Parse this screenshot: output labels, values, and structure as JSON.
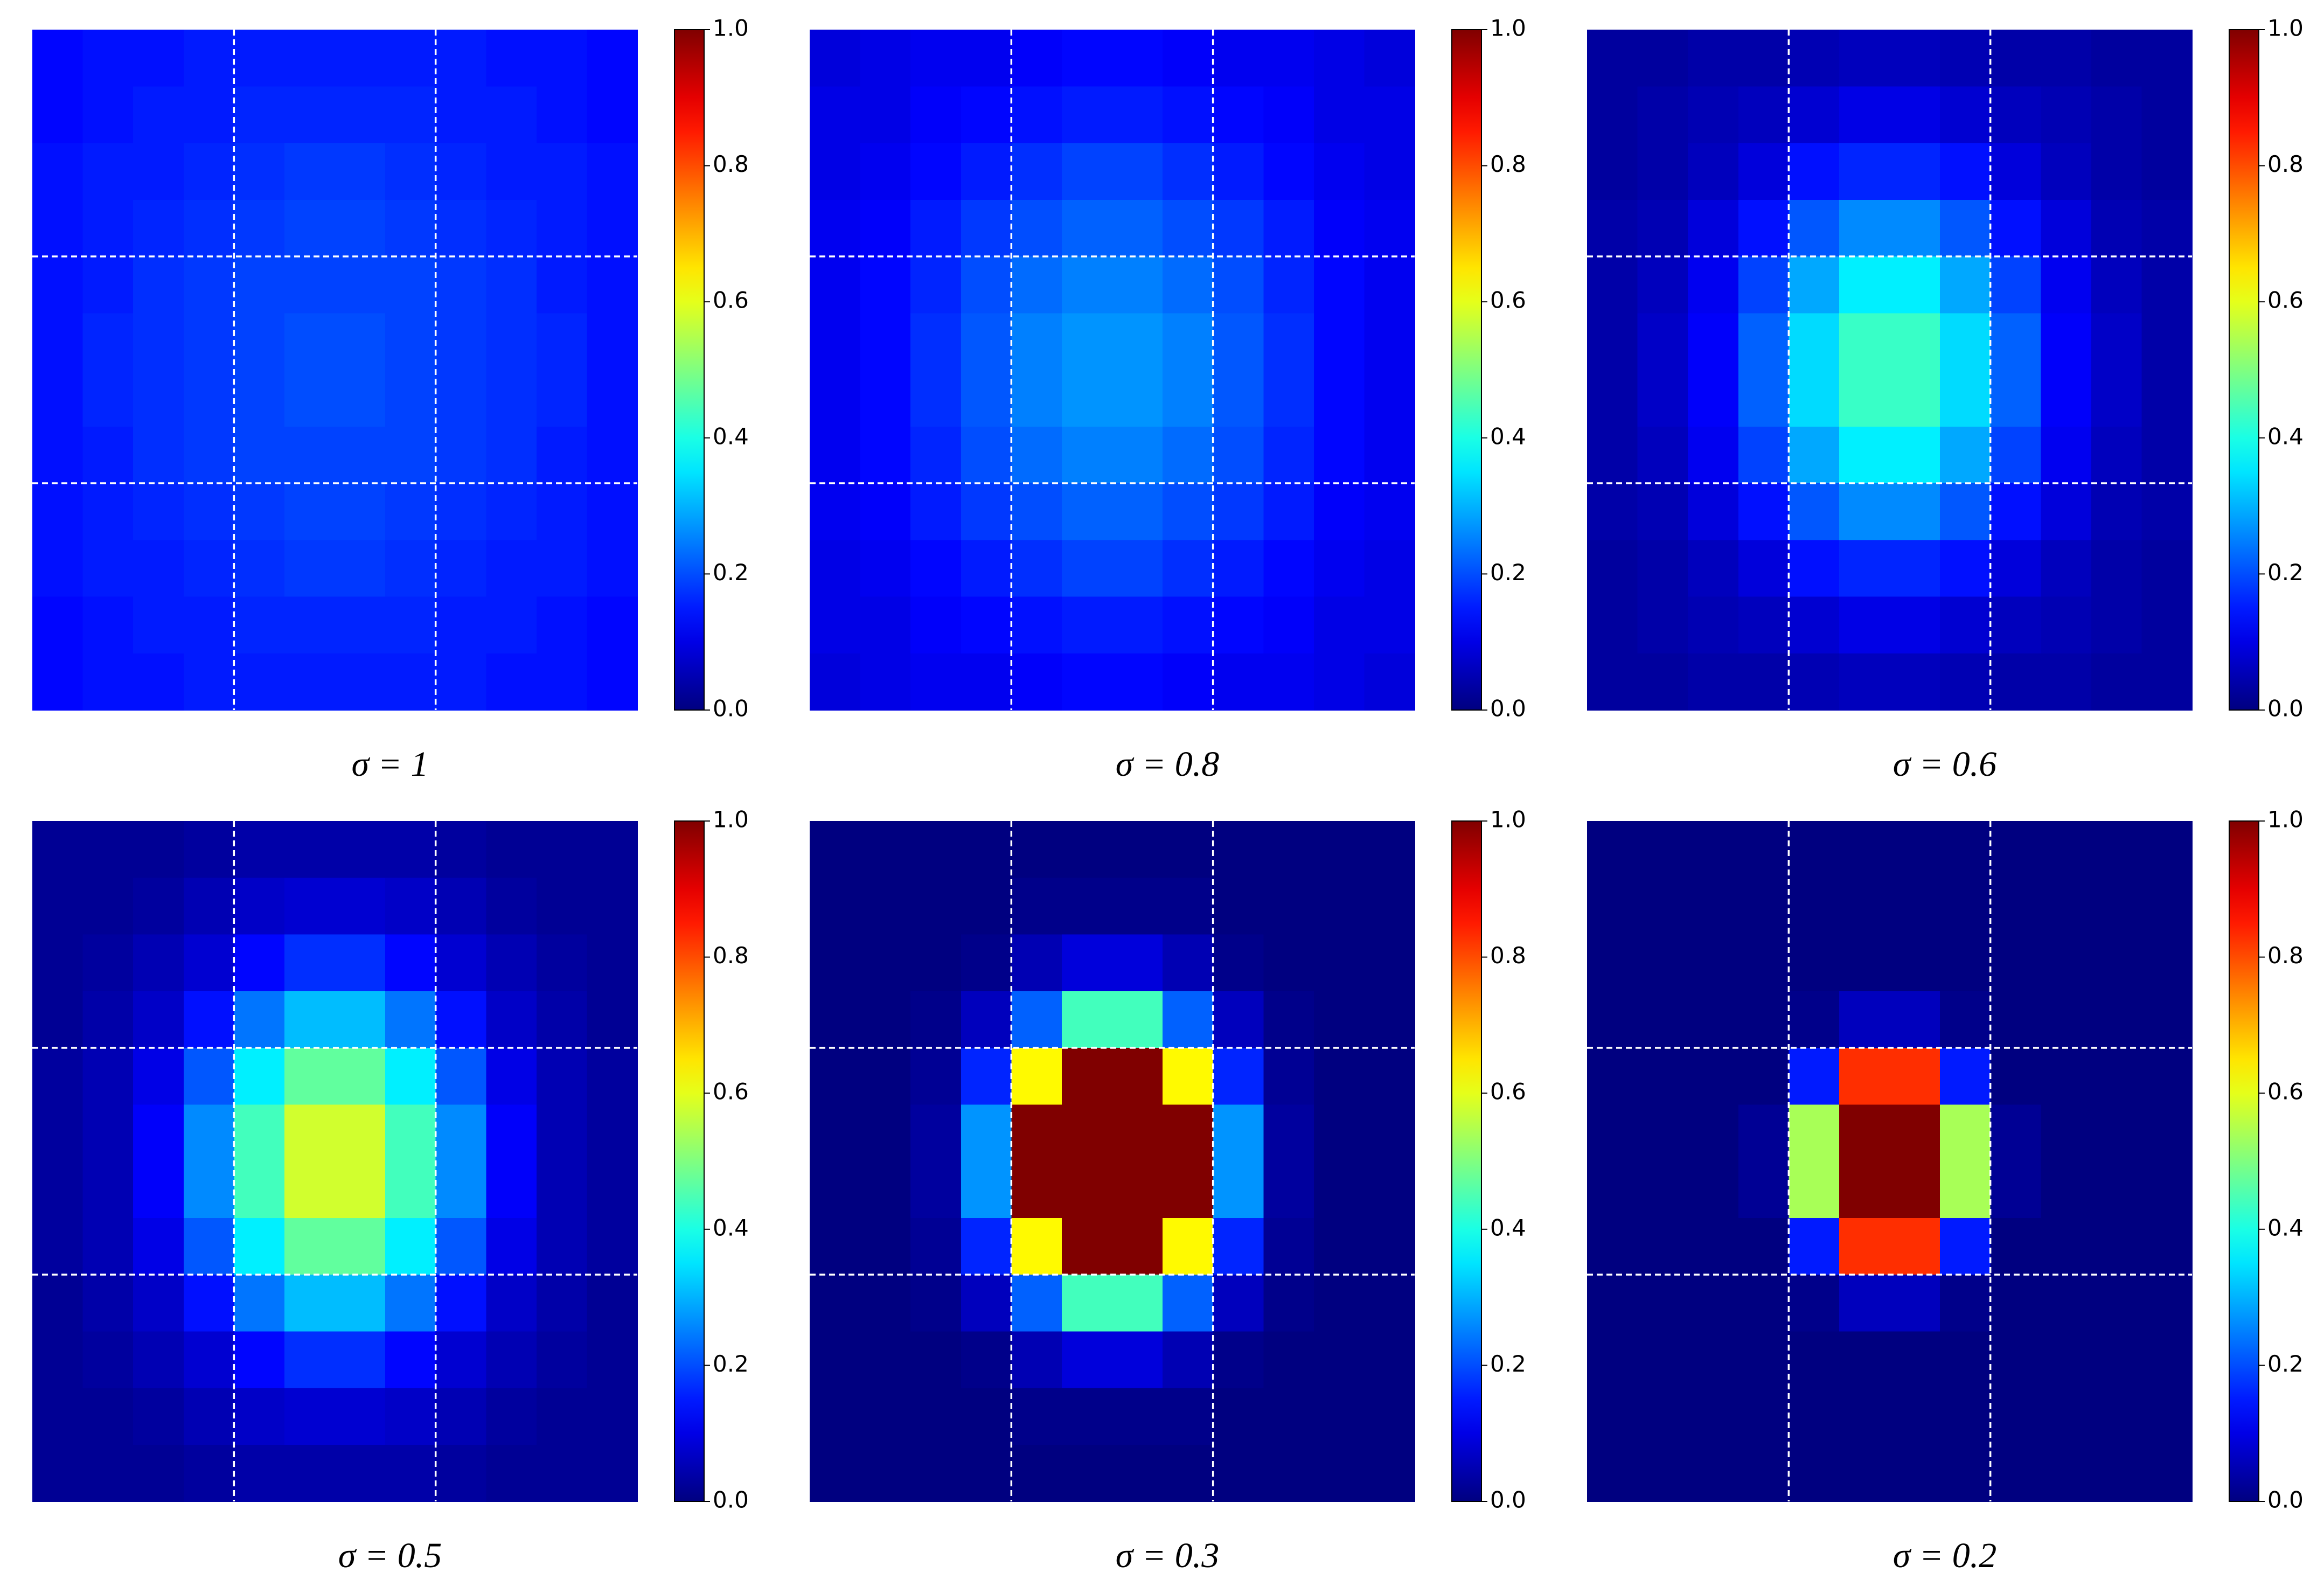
{
  "chart_data": [
    {
      "type": "heatmap",
      "caption": "σ = 1",
      "colormap": "jet",
      "grid": true,
      "clim": [
        0,
        1
      ],
      "cticks": [
        {
          "value": 0,
          "label": "0.0"
        },
        0.2,
        0.4,
        0.6,
        0.8,
        {
          "value": 1,
          "label": "1.0"
        }
      ],
      "z": [
        [
          0.13,
          0.14,
          0.14,
          0.15,
          0.15,
          0.15,
          0.15,
          0.15,
          0.15,
          0.14,
          0.14,
          0.13
        ],
        [
          0.13,
          0.14,
          0.15,
          0.15,
          0.16,
          0.16,
          0.16,
          0.16,
          0.15,
          0.15,
          0.14,
          0.13
        ],
        [
          0.14,
          0.15,
          0.15,
          0.16,
          0.17,
          0.18,
          0.18,
          0.17,
          0.16,
          0.15,
          0.15,
          0.14
        ],
        [
          0.14,
          0.15,
          0.16,
          0.17,
          0.18,
          0.19,
          0.19,
          0.18,
          0.17,
          0.16,
          0.15,
          0.14
        ],
        [
          0.14,
          0.15,
          0.17,
          0.18,
          0.19,
          0.19,
          0.19,
          0.19,
          0.18,
          0.17,
          0.15,
          0.14
        ],
        [
          0.14,
          0.16,
          0.17,
          0.18,
          0.19,
          0.2,
          0.2,
          0.19,
          0.18,
          0.17,
          0.16,
          0.14
        ],
        [
          0.14,
          0.16,
          0.17,
          0.18,
          0.19,
          0.2,
          0.2,
          0.19,
          0.18,
          0.17,
          0.16,
          0.14
        ],
        [
          0.14,
          0.15,
          0.17,
          0.18,
          0.19,
          0.19,
          0.19,
          0.19,
          0.18,
          0.17,
          0.15,
          0.14
        ],
        [
          0.14,
          0.15,
          0.16,
          0.17,
          0.18,
          0.19,
          0.19,
          0.18,
          0.17,
          0.16,
          0.15,
          0.14
        ],
        [
          0.14,
          0.15,
          0.15,
          0.16,
          0.17,
          0.18,
          0.18,
          0.17,
          0.16,
          0.15,
          0.15,
          0.14
        ],
        [
          0.13,
          0.14,
          0.15,
          0.15,
          0.16,
          0.16,
          0.16,
          0.16,
          0.15,
          0.15,
          0.14,
          0.13
        ],
        [
          0.13,
          0.14,
          0.14,
          0.15,
          0.15,
          0.15,
          0.15,
          0.15,
          0.15,
          0.14,
          0.14,
          0.13
        ]
      ]
    },
    {
      "type": "heatmap",
      "caption": "σ = 0.8",
      "colormap": "jet",
      "grid": true,
      "clim": [
        0,
        1
      ],
      "cticks": [
        {
          "value": 0,
          "label": "0.0"
        },
        0.2,
        0.4,
        0.6,
        0.8,
        {
          "value": 1,
          "label": "1.0"
        }
      ],
      "z": [
        [
          0.09,
          0.1,
          0.11,
          0.11,
          0.12,
          0.13,
          0.13,
          0.12,
          0.11,
          0.11,
          0.1,
          0.09
        ],
        [
          0.1,
          0.1,
          0.12,
          0.13,
          0.14,
          0.15,
          0.15,
          0.14,
          0.13,
          0.12,
          0.1,
          0.1
        ],
        [
          0.1,
          0.11,
          0.13,
          0.15,
          0.17,
          0.19,
          0.19,
          0.17,
          0.15,
          0.13,
          0.11,
          0.1
        ],
        [
          0.11,
          0.12,
          0.15,
          0.18,
          0.2,
          0.22,
          0.22,
          0.2,
          0.18,
          0.15,
          0.12,
          0.11
        ],
        [
          0.11,
          0.13,
          0.16,
          0.2,
          0.23,
          0.25,
          0.25,
          0.23,
          0.2,
          0.16,
          0.13,
          0.11
        ],
        [
          0.11,
          0.13,
          0.17,
          0.21,
          0.25,
          0.27,
          0.27,
          0.25,
          0.21,
          0.17,
          0.13,
          0.11
        ],
        [
          0.11,
          0.13,
          0.17,
          0.21,
          0.25,
          0.27,
          0.27,
          0.25,
          0.21,
          0.17,
          0.13,
          0.11
        ],
        [
          0.11,
          0.13,
          0.16,
          0.2,
          0.23,
          0.25,
          0.25,
          0.23,
          0.2,
          0.16,
          0.13,
          0.11
        ],
        [
          0.11,
          0.12,
          0.15,
          0.18,
          0.2,
          0.22,
          0.22,
          0.2,
          0.18,
          0.15,
          0.12,
          0.11
        ],
        [
          0.1,
          0.11,
          0.13,
          0.15,
          0.17,
          0.19,
          0.19,
          0.17,
          0.15,
          0.13,
          0.11,
          0.1
        ],
        [
          0.1,
          0.1,
          0.12,
          0.13,
          0.14,
          0.15,
          0.15,
          0.14,
          0.13,
          0.12,
          0.1,
          0.1
        ],
        [
          0.09,
          0.1,
          0.11,
          0.11,
          0.12,
          0.13,
          0.13,
          0.12,
          0.11,
          0.11,
          0.1,
          0.09
        ]
      ]
    },
    {
      "type": "heatmap",
      "caption": "σ = 0.6",
      "colormap": "jet",
      "grid": true,
      "clim": [
        0,
        1
      ],
      "cticks": [
        {
          "value": 0,
          "label": "0.0"
        },
        0.2,
        0.4,
        0.6,
        0.8,
        {
          "value": 1,
          "label": "1.0"
        }
      ],
      "z": [
        [
          0.03,
          0.03,
          0.04,
          0.04,
          0.05,
          0.06,
          0.06,
          0.05,
          0.04,
          0.04,
          0.03,
          0.03
        ],
        [
          0.03,
          0.04,
          0.05,
          0.06,
          0.08,
          0.1,
          0.1,
          0.08,
          0.06,
          0.05,
          0.04,
          0.03
        ],
        [
          0.03,
          0.04,
          0.06,
          0.09,
          0.14,
          0.16,
          0.16,
          0.14,
          0.09,
          0.06,
          0.04,
          0.03
        ],
        [
          0.04,
          0.05,
          0.09,
          0.14,
          0.21,
          0.26,
          0.26,
          0.21,
          0.14,
          0.09,
          0.05,
          0.04
        ],
        [
          0.04,
          0.06,
          0.11,
          0.19,
          0.29,
          0.36,
          0.36,
          0.29,
          0.19,
          0.11,
          0.06,
          0.04
        ],
        [
          0.04,
          0.07,
          0.12,
          0.22,
          0.34,
          0.43,
          0.43,
          0.34,
          0.22,
          0.12,
          0.07,
          0.04
        ],
        [
          0.04,
          0.07,
          0.12,
          0.22,
          0.34,
          0.43,
          0.43,
          0.34,
          0.22,
          0.12,
          0.07,
          0.04
        ],
        [
          0.04,
          0.06,
          0.11,
          0.19,
          0.29,
          0.36,
          0.36,
          0.29,
          0.19,
          0.11,
          0.06,
          0.04
        ],
        [
          0.04,
          0.05,
          0.09,
          0.14,
          0.21,
          0.26,
          0.26,
          0.21,
          0.14,
          0.09,
          0.05,
          0.04
        ],
        [
          0.03,
          0.04,
          0.06,
          0.09,
          0.14,
          0.16,
          0.16,
          0.14,
          0.09,
          0.06,
          0.04,
          0.03
        ],
        [
          0.03,
          0.04,
          0.05,
          0.06,
          0.08,
          0.1,
          0.1,
          0.08,
          0.06,
          0.05,
          0.04,
          0.03
        ],
        [
          0.03,
          0.03,
          0.04,
          0.04,
          0.05,
          0.06,
          0.06,
          0.05,
          0.04,
          0.04,
          0.03,
          0.03
        ]
      ]
    },
    {
      "type": "heatmap",
      "caption": "σ = 0.5",
      "colormap": "jet",
      "grid": true,
      "clim": [
        0,
        1
      ],
      "cticks": [
        {
          "value": 0,
          "label": "0.0"
        },
        0.2,
        0.4,
        0.6,
        0.8,
        {
          "value": 1,
          "label": "1.0"
        }
      ],
      "z": [
        [
          0.02,
          0.02,
          0.02,
          0.03,
          0.04,
          0.04,
          0.04,
          0.04,
          0.03,
          0.02,
          0.02,
          0.02
        ],
        [
          0.02,
          0.02,
          0.03,
          0.05,
          0.07,
          0.08,
          0.08,
          0.07,
          0.05,
          0.03,
          0.02,
          0.02
        ],
        [
          0.02,
          0.03,
          0.05,
          0.08,
          0.13,
          0.17,
          0.17,
          0.13,
          0.08,
          0.05,
          0.03,
          0.02
        ],
        [
          0.02,
          0.04,
          0.07,
          0.14,
          0.24,
          0.31,
          0.31,
          0.24,
          0.14,
          0.07,
          0.04,
          0.02
        ],
        [
          0.03,
          0.05,
          0.1,
          0.21,
          0.36,
          0.47,
          0.47,
          0.36,
          0.21,
          0.1,
          0.05,
          0.03
        ],
        [
          0.03,
          0.05,
          0.12,
          0.26,
          0.44,
          0.58,
          0.58,
          0.44,
          0.26,
          0.12,
          0.05,
          0.03
        ],
        [
          0.03,
          0.05,
          0.12,
          0.26,
          0.44,
          0.58,
          0.58,
          0.44,
          0.26,
          0.12,
          0.05,
          0.03
        ],
        [
          0.03,
          0.05,
          0.1,
          0.21,
          0.36,
          0.47,
          0.47,
          0.36,
          0.21,
          0.1,
          0.05,
          0.03
        ],
        [
          0.02,
          0.04,
          0.07,
          0.14,
          0.24,
          0.31,
          0.31,
          0.24,
          0.14,
          0.07,
          0.04,
          0.02
        ],
        [
          0.02,
          0.03,
          0.05,
          0.08,
          0.13,
          0.17,
          0.17,
          0.13,
          0.08,
          0.05,
          0.03,
          0.02
        ],
        [
          0.02,
          0.02,
          0.03,
          0.05,
          0.07,
          0.08,
          0.08,
          0.07,
          0.05,
          0.03,
          0.02,
          0.02
        ],
        [
          0.02,
          0.02,
          0.02,
          0.03,
          0.04,
          0.04,
          0.04,
          0.04,
          0.03,
          0.02,
          0.02,
          0.02
        ]
      ]
    },
    {
      "type": "heatmap",
      "caption": "σ = 0.3",
      "colormap": "jet",
      "grid": true,
      "clim": [
        0,
        1
      ],
      "cticks": [
        {
          "value": 0,
          "label": "0.0"
        },
        0.2,
        0.4,
        0.6,
        0.8,
        {
          "value": 1,
          "label": "1.0"
        }
      ],
      "z": [
        [
          0,
          0,
          0,
          0,
          0,
          0,
          0,
          0,
          0,
          0,
          0,
          0
        ],
        [
          0,
          0,
          0,
          0,
          0.01,
          0.01,
          0.01,
          0.01,
          0,
          0,
          0,
          0
        ],
        [
          0,
          0,
          0,
          0.01,
          0.05,
          0.09,
          0.09,
          0.05,
          0.01,
          0,
          0,
          0
        ],
        [
          0,
          0,
          0.01,
          0.06,
          0.22,
          0.44,
          0.44,
          0.22,
          0.06,
          0.01,
          0,
          0
        ],
        [
          0,
          0,
          0.02,
          0.16,
          0.63,
          1,
          1,
          0.63,
          0.16,
          0.02,
          0,
          0
        ],
        [
          0,
          0,
          0.03,
          0.27,
          1,
          1,
          1,
          1,
          0.27,
          0.03,
          0,
          0
        ],
        [
          0,
          0,
          0.03,
          0.27,
          1,
          1,
          1,
          1,
          0.27,
          0.03,
          0,
          0
        ],
        [
          0,
          0,
          0.02,
          0.16,
          0.63,
          1,
          1,
          0.63,
          0.16,
          0.02,
          0,
          0
        ],
        [
          0,
          0,
          0.01,
          0.06,
          0.22,
          0.44,
          0.44,
          0.22,
          0.06,
          0.01,
          0,
          0
        ],
        [
          0,
          0,
          0,
          0.01,
          0.05,
          0.09,
          0.09,
          0.05,
          0.01,
          0,
          0,
          0
        ],
        [
          0,
          0,
          0,
          0,
          0.01,
          0.01,
          0.01,
          0.01,
          0,
          0,
          0,
          0
        ],
        [
          0,
          0,
          0,
          0,
          0,
          0,
          0,
          0,
          0,
          0,
          0,
          0
        ]
      ]
    },
    {
      "type": "heatmap",
      "caption": "σ = 0.2",
      "colormap": "jet",
      "grid": true,
      "clim": [
        0,
        1
      ],
      "cticks": [
        {
          "value": 0,
          "label": "0.0"
        },
        0.2,
        0.4,
        0.6,
        0.8,
        {
          "value": 1,
          "label": "1.0"
        }
      ],
      "z": [
        [
          0,
          0,
          0,
          0,
          0,
          0,
          0,
          0,
          0,
          0,
          0,
          0
        ],
        [
          0,
          0,
          0,
          0,
          0,
          0,
          0,
          0,
          0,
          0,
          0,
          0
        ],
        [
          0,
          0,
          0,
          0,
          0,
          0,
          0,
          0,
          0,
          0,
          0,
          0
        ],
        [
          0,
          0,
          0,
          0,
          0.01,
          0.06,
          0.06,
          0.01,
          0,
          0,
          0,
          0
        ],
        [
          0,
          0,
          0,
          0,
          0.15,
          0.83,
          0.83,
          0.15,
          0,
          0,
          0,
          0
        ],
        [
          0,
          0,
          0,
          0.02,
          0.54,
          1,
          1,
          0.54,
          0.02,
          0,
          0,
          0
        ],
        [
          0,
          0,
          0,
          0.02,
          0.54,
          1,
          1,
          0.54,
          0.02,
          0,
          0,
          0
        ],
        [
          0,
          0,
          0,
          0,
          0.15,
          0.83,
          0.83,
          0.15,
          0,
          0,
          0,
          0
        ],
        [
          0,
          0,
          0,
          0,
          0.01,
          0.06,
          0.06,
          0.01,
          0,
          0,
          0,
          0
        ],
        [
          0,
          0,
          0,
          0,
          0,
          0,
          0,
          0,
          0,
          0,
          0,
          0
        ],
        [
          0,
          0,
          0,
          0,
          0,
          0,
          0,
          0,
          0,
          0,
          0,
          0
        ],
        [
          0,
          0,
          0,
          0,
          0,
          0,
          0,
          0,
          0,
          0,
          0,
          0
        ]
      ]
    }
  ]
}
